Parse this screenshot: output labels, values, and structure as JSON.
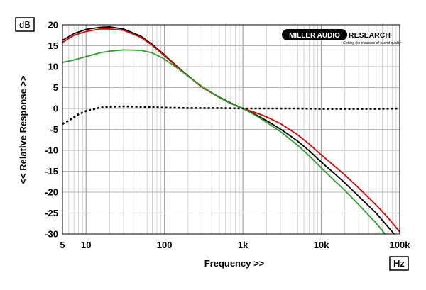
{
  "chart_data": {
    "type": "line",
    "x_scale": "log",
    "xlim": [
      5,
      100000
    ],
    "ylim": [
      -30,
      20
    ],
    "grid": true,
    "unit_label_y": "dB",
    "unit_label_x": "Hz",
    "xlabel": "Frequency >>",
    "ylabel": "<< Relative Response >>",
    "x_tick_labels": [
      {
        "value": 5,
        "label": "5"
      },
      {
        "value": 10,
        "label": "10"
      },
      {
        "value": 100,
        "label": "100"
      },
      {
        "value": 1000,
        "label": "1k"
      },
      {
        "value": 10000,
        "label": "10k"
      },
      {
        "value": 100000,
        "label": "100k"
      }
    ],
    "y_ticks": [
      20,
      15,
      10,
      5,
      0,
      -5,
      -10,
      -15,
      -20,
      -25,
      -30
    ],
    "logo": {
      "brand_left": "MILLER AUDIO",
      "brand_right": "RESEARCH",
      "tagline": "Getting the measure of sound quality"
    },
    "series": [
      {
        "color": "#000000",
        "style": "solid",
        "points": [
          [
            5,
            16.3
          ],
          [
            7,
            17.9
          ],
          [
            10,
            18.9
          ],
          [
            15,
            19.4
          ],
          [
            20,
            19.5
          ],
          [
            30,
            19.0
          ],
          [
            50,
            17.3
          ],
          [
            70,
            15.3
          ],
          [
            100,
            12.8
          ],
          [
            150,
            9.8
          ],
          [
            200,
            7.8
          ],
          [
            300,
            5.2
          ],
          [
            500,
            2.7
          ],
          [
            700,
            1.3
          ],
          [
            1000,
            0.0
          ],
          [
            1500,
            -1.6
          ],
          [
            2000,
            -2.9
          ],
          [
            3000,
            -4.9
          ],
          [
            5000,
            -7.8
          ],
          [
            7000,
            -10.1
          ],
          [
            10000,
            -12.8
          ],
          [
            15000,
            -15.7
          ],
          [
            20000,
            -17.8
          ],
          [
            30000,
            -21.0
          ],
          [
            50000,
            -25.0
          ],
          [
            70000,
            -28.2
          ],
          [
            85000,
            -30.0
          ]
        ]
      },
      {
        "color": "#e00000",
        "style": "solid",
        "points": [
          [
            5,
            15.8
          ],
          [
            7,
            17.5
          ],
          [
            10,
            18.4
          ],
          [
            15,
            19.0
          ],
          [
            20,
            19.0
          ],
          [
            30,
            18.7
          ],
          [
            50,
            17.0
          ],
          [
            70,
            15.1
          ],
          [
            100,
            12.6
          ],
          [
            150,
            9.7
          ],
          [
            200,
            7.7
          ],
          [
            300,
            5.1
          ],
          [
            500,
            2.6
          ],
          [
            700,
            1.2
          ],
          [
            1000,
            0.0
          ],
          [
            1500,
            -1.1
          ],
          [
            2000,
            -2.0
          ],
          [
            3000,
            -3.6
          ],
          [
            5000,
            -6.3
          ],
          [
            7000,
            -8.5
          ],
          [
            10000,
            -11.1
          ],
          [
            15000,
            -13.9
          ],
          [
            20000,
            -15.9
          ],
          [
            30000,
            -19.0
          ],
          [
            50000,
            -23.1
          ],
          [
            70000,
            -26.0
          ],
          [
            100000,
            -29.5
          ]
        ]
      },
      {
        "color": "#2ca02c",
        "style": "solid",
        "points": [
          [
            5,
            11.0
          ],
          [
            7,
            11.6
          ],
          [
            10,
            12.4
          ],
          [
            15,
            13.3
          ],
          [
            20,
            13.7
          ],
          [
            30,
            14.0
          ],
          [
            50,
            13.9
          ],
          [
            70,
            13.3
          ],
          [
            100,
            11.8
          ],
          [
            150,
            9.5
          ],
          [
            200,
            7.7
          ],
          [
            300,
            5.3
          ],
          [
            500,
            2.6
          ],
          [
            700,
            1.2
          ],
          [
            1000,
            0.0
          ],
          [
            1500,
            -1.8
          ],
          [
            2000,
            -3.3
          ],
          [
            3000,
            -5.5
          ],
          [
            5000,
            -8.8
          ],
          [
            7000,
            -11.3
          ],
          [
            10000,
            -14.2
          ],
          [
            15000,
            -17.4
          ],
          [
            20000,
            -19.6
          ],
          [
            30000,
            -23.0
          ],
          [
            50000,
            -27.4
          ],
          [
            65000,
            -30.0
          ]
        ]
      },
      {
        "color": "#000000",
        "style": "dotted",
        "points": [
          [
            5,
            -3.7
          ],
          [
            6,
            -2.9
          ],
          [
            7,
            -2.1
          ],
          [
            8,
            -1.4
          ],
          [
            10,
            -0.6
          ],
          [
            15,
            0.2
          ],
          [
            20,
            0.4
          ],
          [
            30,
            0.5
          ],
          [
            50,
            0.4
          ],
          [
            100,
            0.2
          ],
          [
            200,
            0.1
          ],
          [
            500,
            0.1
          ],
          [
            1000,
            0.0
          ],
          [
            2000,
            0.0
          ],
          [
            5000,
            0.0
          ],
          [
            10000,
            -0.1
          ],
          [
            20000,
            -0.1
          ],
          [
            50000,
            -0.1
          ],
          [
            100000,
            0.0
          ]
        ]
      }
    ]
  }
}
